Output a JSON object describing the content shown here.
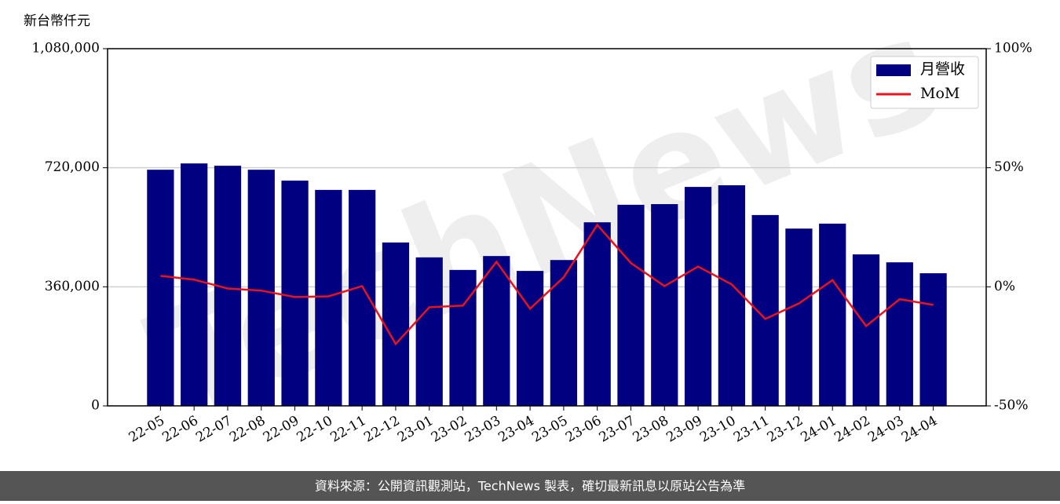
{
  "chart_data": {
    "type": "bar-line",
    "y_label": "新台幣仟元",
    "watermark": "TechNews",
    "footer": "資料來源：公開資訊觀測站，TechNews 製表，確切最新訊息以原站公告為準",
    "categories": [
      "22-05",
      "22-06",
      "22-07",
      "22-08",
      "22-09",
      "22-10",
      "22-11",
      "22-12",
      "23-01",
      "23-02",
      "23-03",
      "23-04",
      "23-05",
      "23-06",
      "23-07",
      "23-08",
      "23-09",
      "23-10",
      "23-11",
      "23-12",
      "24-01",
      "24-02",
      "24-03",
      "24-04"
    ],
    "series": [
      {
        "name": "月營收",
        "type": "bar",
        "color": "#000080",
        "values": [
          714000,
          733000,
          726000,
          714000,
          681000,
          653000,
          653000,
          494000,
          449000,
          411000,
          453000,
          408000,
          441000,
          555000,
          608000,
          610000,
          662000,
          667000,
          577000,
          536000,
          551000,
          458000,
          434000,
          401000
        ]
      },
      {
        "name": "MoM",
        "type": "line",
        "axis": "y2",
        "color": "#e8141b",
        "values": [
          4.6,
          3.0,
          -0.7,
          -1.6,
          -4.3,
          -4.0,
          0.3,
          -24,
          -8.6,
          -7.9,
          10.5,
          -9.2,
          4,
          26,
          10,
          0.3,
          8.5,
          1,
          -13.5,
          -7,
          2.8,
          -16.5,
          -5.2,
          -7.6
        ]
      }
    ],
    "ylim": [
      0,
      1080000
    ],
    "yticks": [
      0,
      {
        "value": 360000,
        "label": "360,000"
      },
      {
        "value": 720000,
        "label": "720,000"
      },
      {
        "value": 1080000,
        "label": "1,080,000"
      }
    ],
    "y2lim": [
      -50,
      100
    ],
    "y2ticks": [
      {
        "value": -50,
        "label": "-50%"
      },
      {
        "value": 0,
        "label": "0%"
      },
      {
        "value": 50,
        "label": "50%"
      },
      {
        "value": 100,
        "label": "100%"
      }
    ],
    "grid": true,
    "legend": "upper right"
  }
}
